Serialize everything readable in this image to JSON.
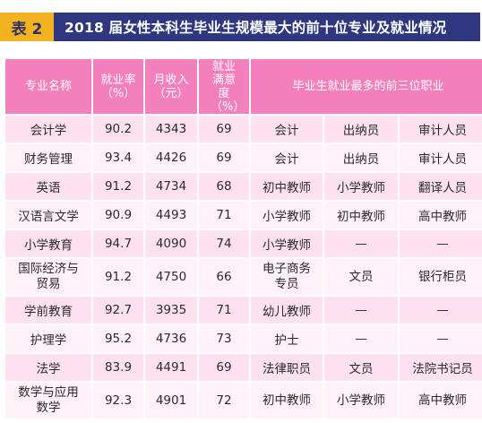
{
  "title": {
    "badge": "表 2",
    "text": "2018 届女性本科生毕业生规模最大的前十位专业及就业情况"
  },
  "headers": {
    "major": "专业名称",
    "employment_rate": "就业率（%）",
    "monthly_income": "月收入（元）",
    "satisfaction": "就业满意度（%）",
    "top_jobs": "毕业生就业最多的前三位职业"
  },
  "rows": [
    {
      "major": "会计学",
      "rate": "90.2",
      "income": "4343",
      "sat": "69",
      "job1": "会计",
      "job2": "出纳员",
      "job3": "审计人员"
    },
    {
      "major": "财务管理",
      "rate": "93.4",
      "income": "4426",
      "sat": "69",
      "job1": "会计",
      "job2": "出纳员",
      "job3": "审计人员"
    },
    {
      "major": "英语",
      "rate": "91.2",
      "income": "4734",
      "sat": "68",
      "job1": "初中教师",
      "job2": "小学教师",
      "job3": "翻译人员"
    },
    {
      "major": "汉语言文学",
      "rate": "90.9",
      "income": "4493",
      "sat": "71",
      "job1": "小学教师",
      "job2": "初中教师",
      "job3": "高中教师"
    },
    {
      "major": "小学教育",
      "rate": "94.7",
      "income": "4090",
      "sat": "74",
      "job1": "小学教师",
      "job2": "—",
      "job3": "—"
    },
    {
      "major": "国际经济与贸易",
      "rate": "91.2",
      "income": "4750",
      "sat": "66",
      "job1": "电子商务专员",
      "job2": "文员",
      "job3": "银行柜员"
    },
    {
      "major": "学前教育",
      "rate": "92.7",
      "income": "3935",
      "sat": "71",
      "job1": "幼儿教师",
      "job2": "—",
      "job3": "—"
    },
    {
      "major": "护理学",
      "rate": "95.2",
      "income": "4736",
      "sat": "73",
      "job1": "护士",
      "job2": "—",
      "job3": "—"
    },
    {
      "major": "法学",
      "rate": "83.9",
      "income": "4491",
      "sat": "69",
      "job1": "法律职员",
      "job2": "文员",
      "job3": "法院书记员"
    },
    {
      "major": "数学与应用数学",
      "rate": "92.3",
      "income": "4901",
      "sat": "72",
      "job1": "初中教师",
      "job2": "小学教师",
      "job3": "高中教师"
    }
  ],
  "colors": {
    "badge": "#f3b21f",
    "title_bg": "#2e3780",
    "header_bg": "#f47fbd",
    "row_dark": "#fde1f0",
    "row_light": "#fff1f8"
  }
}
